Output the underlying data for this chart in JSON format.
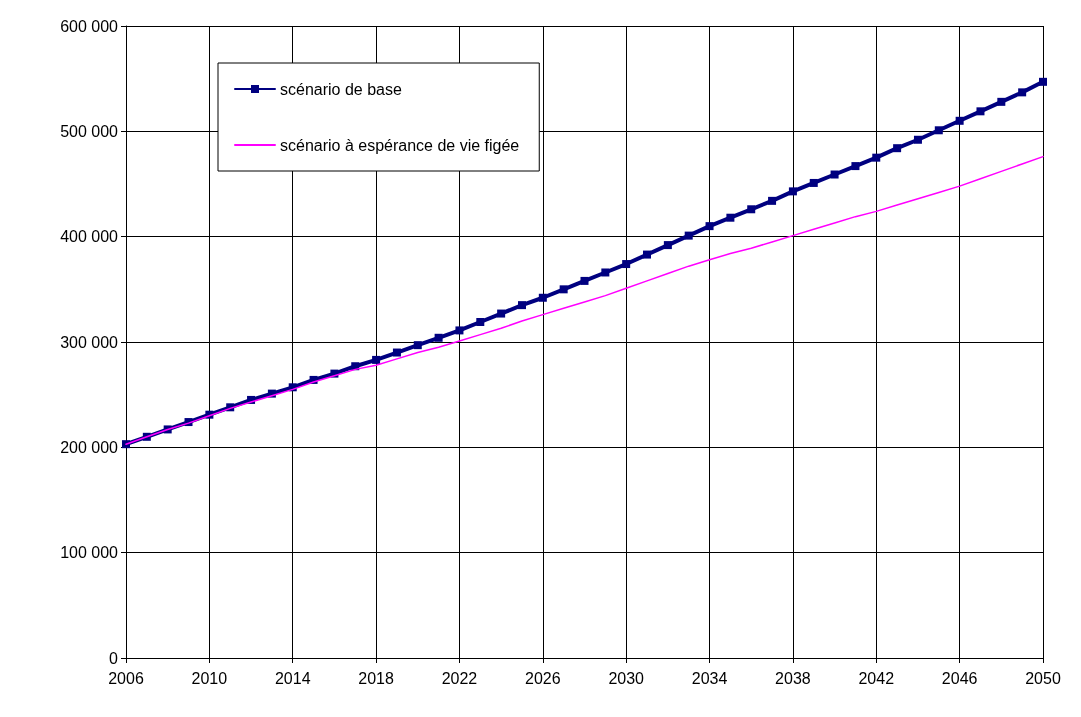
{
  "chart_data": {
    "type": "line",
    "categories": [
      "2006",
      null,
      null,
      null,
      "2010",
      null,
      null,
      null,
      "2014",
      null,
      null,
      null,
      "2018",
      null,
      null,
      null,
      "2022",
      null,
      null,
      null,
      "2026",
      null,
      null,
      null,
      "2030",
      null,
      null,
      null,
      "2034",
      null,
      null,
      null,
      "2038",
      null,
      null,
      null,
      "2042",
      null,
      null,
      null,
      "2046",
      null,
      null,
      null,
      "2050"
    ],
    "series": [
      {
        "name": "scénario de base",
        "color": "#000080",
        "marker": "square",
        "values": [
          203000,
          210000,
          217000,
          224000,
          231000,
          238000,
          245000,
          251000,
          257000,
          264000,
          270000,
          277000,
          283000,
          290000,
          297000,
          304000,
          311000,
          319000,
          327000,
          335000,
          342000,
          350000,
          358000,
          366000,
          374000,
          383000,
          392000,
          401000,
          410000,
          418000,
          426000,
          434000,
          443000,
          451000,
          459000,
          467000,
          475000,
          484000,
          492000,
          501000,
          510000,
          519000,
          528000,
          537000,
          547000
        ]
      },
      {
        "name": "scénario à espérance de vie figée",
        "color": "#ff00ff",
        "marker": "none",
        "values": [
          203000,
          210000,
          217000,
          223000,
          230000,
          237000,
          243000,
          249000,
          255000,
          262000,
          268000,
          274000,
          278000,
          284000,
          290000,
          295000,
          301000,
          307000,
          313000,
          320000,
          326000,
          332000,
          338000,
          344000,
          351000,
          358000,
          365000,
          372000,
          378000,
          384000,
          389000,
          395000,
          401000,
          407000,
          413000,
          419000,
          424000,
          430000,
          436000,
          442000,
          448000,
          455000,
          462000,
          469000,
          476000
        ]
      }
    ],
    "ylim": [
      0,
      600000
    ],
    "yticks": [
      {
        "value": 0,
        "label": "0"
      },
      {
        "value": 100000,
        "label": "100 000"
      },
      {
        "value": 200000,
        "label": "200 000"
      },
      {
        "value": 300000,
        "label": "300 000"
      },
      {
        "value": 400000,
        "label": "400 000"
      },
      {
        "value": 500000,
        "label": "500 000"
      },
      {
        "value": 600000,
        "label": "600 000"
      }
    ],
    "grid": true,
    "legend": "top left"
  }
}
